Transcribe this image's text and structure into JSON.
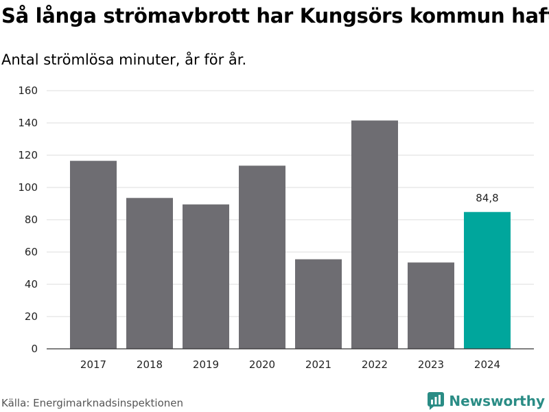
{
  "header": {
    "title": "Så långa strömavbrott har Kungsörs kommun haft",
    "subtitle": "Antal strömlösa minuter, år för år."
  },
  "footer": {
    "source": "Källa: Energimarknadsinspektionen",
    "brand": "Newsworthy",
    "brand_color": "#2a8c85"
  },
  "colors": {
    "bar_default": "#6e6d72",
    "bar_highlight": "#00a69c",
    "grid": "#dddddd",
    "axis": "#333333"
  },
  "chart_data": {
    "type": "bar",
    "title": "Så långa strömavbrott har Kungsörs kommun haft",
    "subtitle": "Antal strömlösa minuter, år för år.",
    "xlabel": "",
    "ylabel": "",
    "categories": [
      "2017",
      "2018",
      "2019",
      "2020",
      "2021",
      "2022",
      "2023",
      "2024"
    ],
    "values": [
      116.5,
      93.5,
      89.5,
      113.5,
      55.5,
      141.5,
      53.5,
      84.8
    ],
    "highlight_index": 7,
    "data_labels": [
      {
        "index": 7,
        "text": "84,8"
      }
    ],
    "ylim": [
      0,
      160
    ],
    "yticks": [
      0,
      20,
      40,
      60,
      80,
      100,
      120,
      140,
      160
    ],
    "grid": true,
    "legend": "none"
  }
}
